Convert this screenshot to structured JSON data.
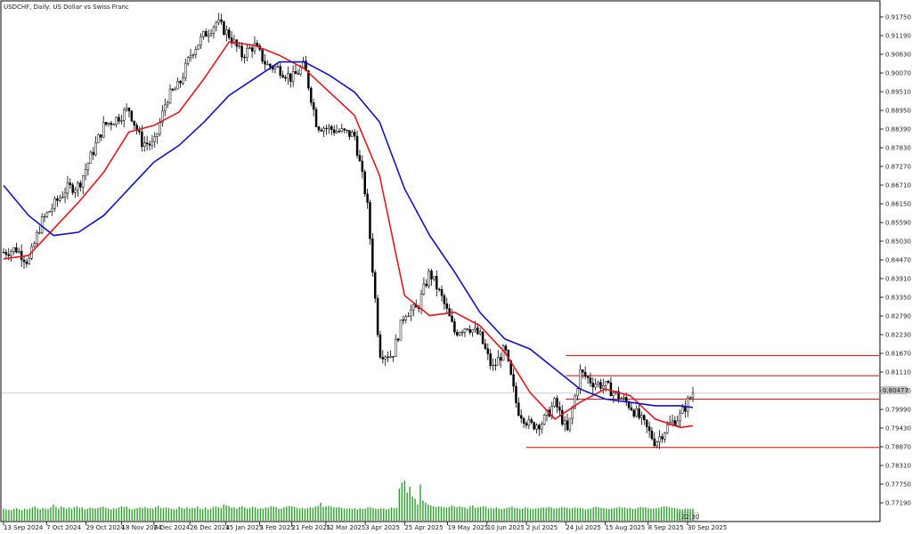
{
  "chart_title": "USDCHF, Daily:  US Dollar vs Swiss Franc",
  "price_tag": "0.80477",
  "time_tag": "22:30",
  "colors": {
    "candle": "#000000",
    "ma_fast": "#e8141c",
    "ma_slow": "#1010c8",
    "volume": "#2aa22a",
    "level_line": "#e00000",
    "bid_line": "#c0c0c0"
  },
  "chart_data": {
    "type": "line",
    "title": "USDCHF, Daily:  US Dollar vs Swiss Franc",
    "y_range": [
      0.769,
      0.92
    ],
    "y_ticks": [
      0.9175,
      0.9119,
      0.9063,
      0.9007,
      0.8951,
      0.8895,
      0.8839,
      0.8783,
      0.8727,
      0.8671,
      0.8615,
      0.8559,
      0.8503,
      0.8447,
      0.8391,
      0.8335,
      0.8279,
      0.8223,
      0.8167,
      0.8111,
      0.8055,
      0.7999,
      0.7943,
      0.7887,
      0.7831,
      0.7775,
      0.7719
    ],
    "y_tick_labels": [
      "0.91750",
      "0.91190",
      "0.90630",
      "0.90070",
      "0.89510",
      "0.88950",
      "0.88390",
      "0.87830",
      "0.87270",
      "0.86710",
      "0.86150",
      "0.85590",
      "0.85030",
      "0.84470",
      "0.83910",
      "0.83350",
      "0.82790",
      "0.82230",
      "0.81670",
      "0.81110",
      "0.80550",
      "0.79990",
      "0.79430",
      "0.78870",
      "0.78310",
      "0.77750",
      "0.77190"
    ],
    "x_labels": [
      "13 Sep 2024",
      "7 Oct 2024",
      "29 Oct 2024",
      "18 Nov 2024",
      "6 Dec 2024",
      "26 Dec 2024",
      "15 Jan 2025",
      "3 Feb 2025",
      "21 Feb 2025",
      "12 Mar 2025",
      "3 Apr 2025",
      "25 Apr 2025",
      "19 May 2025",
      "10 Jun 2025",
      "2 Jul 2025",
      "24 Jul 2025",
      "15 Aug 2025",
      "8 Sep 2025",
      "30 Sep 2025"
    ],
    "x_dates": [
      "2024-09-13",
      "2024-10-07",
      "2024-10-29",
      "2024-11-18",
      "2024-12-06",
      "2024-12-26",
      "2025-01-15",
      "2025-02-03",
      "2025-02-21",
      "2025-03-12",
      "2025-04-03",
      "2025-04-25",
      "2025-05-19",
      "2025-06-10",
      "2025-07-02",
      "2025-07-24",
      "2025-08-15",
      "2025-09-08",
      "2025-09-30"
    ],
    "close_path": [
      [
        "2024-09-13",
        0.847
      ],
      [
        "2024-09-20",
        0.848
      ],
      [
        "2024-09-27",
        0.844
      ],
      [
        "2024-10-04",
        0.856
      ],
      [
        "2024-10-11",
        0.861
      ],
      [
        "2024-10-18",
        0.866
      ],
      [
        "2024-10-25",
        0.867
      ],
      [
        "2024-11-01",
        0.876
      ],
      [
        "2024-11-08",
        0.885
      ],
      [
        "2024-11-15",
        0.887
      ],
      [
        "2024-11-22",
        0.89
      ],
      [
        "2024-11-29",
        0.88
      ],
      [
        "2024-12-06",
        0.879
      ],
      [
        "2024-12-13",
        0.893
      ],
      [
        "2024-12-20",
        0.897
      ],
      [
        "2024-12-27",
        0.907
      ],
      [
        "2025-01-03",
        0.912
      ],
      [
        "2025-01-10",
        0.916
      ],
      [
        "2025-01-17",
        0.912
      ],
      [
        "2025-01-24",
        0.906
      ],
      [
        "2025-01-31",
        0.909
      ],
      [
        "2025-02-07",
        0.903
      ],
      [
        "2025-02-14",
        0.902
      ],
      [
        "2025-02-21",
        0.899
      ],
      [
        "2025-02-28",
        0.903
      ],
      [
        "2025-03-07",
        0.885
      ],
      [
        "2025-03-14",
        0.884
      ],
      [
        "2025-03-21",
        0.883
      ],
      [
        "2025-03-28",
        0.882
      ],
      [
        "2025-04-04",
        0.862
      ],
      [
        "2025-04-11",
        0.817
      ],
      [
        "2025-04-18",
        0.816
      ],
      [
        "2025-04-25",
        0.829
      ],
      [
        "2025-05-02",
        0.83
      ],
      [
        "2025-05-09",
        0.841
      ],
      [
        "2025-05-16",
        0.833
      ],
      [
        "2025-05-23",
        0.823
      ],
      [
        "2025-05-30",
        0.825
      ],
      [
        "2025-06-06",
        0.822
      ],
      [
        "2025-06-13",
        0.812
      ],
      [
        "2025-06-20",
        0.818
      ],
      [
        "2025-06-27",
        0.8
      ],
      [
        "2025-07-04",
        0.795
      ],
      [
        "2025-07-11",
        0.796
      ],
      [
        "2025-07-18",
        0.802
      ],
      [
        "2025-07-25",
        0.793
      ],
      [
        "2025-08-01",
        0.811
      ],
      [
        "2025-08-08",
        0.808
      ],
      [
        "2025-08-15",
        0.807
      ],
      [
        "2025-08-22",
        0.804
      ],
      [
        "2025-08-29",
        0.801
      ],
      [
        "2025-09-05",
        0.796
      ],
      [
        "2025-09-12",
        0.79
      ],
      [
        "2025-09-19",
        0.795
      ],
      [
        "2025-09-26",
        0.798
      ],
      [
        "2025-10-03",
        0.805
      ]
    ],
    "series": [
      {
        "values": [
          [
            "2024-09-13",
            0.845
          ],
          [
            "2024-09-27",
            0.846
          ],
          [
            "2024-10-11",
            0.854
          ],
          [
            "2024-10-25",
            0.862
          ],
          [
            "2024-11-08",
            0.871
          ],
          [
            "2024-11-22",
            0.883
          ],
          [
            "2024-12-06",
            0.885
          ],
          [
            "2024-12-20",
            0.889
          ],
          [
            "2025-01-03",
            0.899
          ],
          [
            "2025-01-17",
            0.91
          ],
          [
            "2025-01-31",
            0.909
          ],
          [
            "2025-02-14",
            0.906
          ],
          [
            "2025-02-28",
            0.902
          ],
          [
            "2025-03-14",
            0.895
          ],
          [
            "2025-03-28",
            0.888
          ],
          [
            "2025-04-11",
            0.87
          ],
          [
            "2025-04-25",
            0.834
          ],
          [
            "2025-05-09",
            0.828
          ],
          [
            "2025-05-23",
            0.829
          ],
          [
            "2025-06-06",
            0.825
          ],
          [
            "2025-06-20",
            0.817
          ],
          [
            "2025-07-04",
            0.805
          ],
          [
            "2025-07-18",
            0.797
          ],
          [
            "2025-08-01",
            0.802
          ],
          [
            "2025-08-15",
            0.806
          ],
          [
            "2025-08-29",
            0.804
          ],
          [
            "2025-09-12",
            0.797
          ],
          [
            "2025-09-26",
            0.7945
          ],
          [
            "2025-10-03",
            0.795
          ]
        ]
      },
      {
        "values": [
          [
            "2024-09-13",
            0.867
          ],
          [
            "2024-09-27",
            0.858
          ],
          [
            "2024-10-11",
            0.852
          ],
          [
            "2024-10-25",
            0.853
          ],
          [
            "2024-11-08",
            0.858
          ],
          [
            "2024-11-22",
            0.866
          ],
          [
            "2024-12-06",
            0.874
          ],
          [
            "2024-12-20",
            0.879
          ],
          [
            "2025-01-03",
            0.886
          ],
          [
            "2025-01-17",
            0.894
          ],
          [
            "2025-01-31",
            0.899
          ],
          [
            "2025-02-14",
            0.904
          ],
          [
            "2025-02-28",
            0.904
          ],
          [
            "2025-03-14",
            0.9
          ],
          [
            "2025-03-28",
            0.895
          ],
          [
            "2025-04-11",
            0.886
          ],
          [
            "2025-04-25",
            0.866
          ],
          [
            "2025-05-09",
            0.852
          ],
          [
            "2025-05-23",
            0.841
          ],
          [
            "2025-06-06",
            0.829
          ],
          [
            "2025-06-20",
            0.821
          ],
          [
            "2025-07-04",
            0.818
          ],
          [
            "2025-07-18",
            0.812
          ],
          [
            "2025-08-01",
            0.806
          ],
          [
            "2025-08-15",
            0.803
          ],
          [
            "2025-08-29",
            0.802
          ],
          [
            "2025-09-12",
            0.801
          ],
          [
            "2025-09-26",
            0.801
          ],
          [
            "2025-10-03",
            0.8005
          ]
        ]
      }
    ],
    "levels": [
      {
        "value": 0.816,
        "from": "2025-07-24"
      },
      {
        "value": 0.81,
        "from": "2025-07-24"
      },
      {
        "value": 0.803,
        "from": "2025-07-24"
      },
      {
        "value": 0.7885,
        "from": "2025-07-02"
      }
    ],
    "current_price": 0.80477,
    "volume_relative": [
      0.3,
      0.28,
      0.27,
      0.26,
      0.3,
      0.31,
      0.28,
      0.26,
      0.3,
      0.28,
      0.3,
      0.33,
      0.35,
      0.3,
      0.28,
      0.32,
      0.3,
      0.29,
      0.33,
      0.4,
      0.34,
      0.3,
      0.35,
      0.33,
      0.3,
      0.33,
      0.3,
      0.34,
      0.36,
      0.32,
      0.33,
      0.28,
      0.29,
      0.32,
      0.31,
      0.3,
      0.32,
      0.34,
      0.35,
      0.32,
      0.3,
      0.28,
      0.31,
      0.3,
      0.33,
      0.36,
      0.33,
      0.35,
      0.3,
      0.28,
      0.3,
      0.31,
      0.33,
      0.32,
      0.34,
      0.31,
      0.31,
      0.3,
      0.34,
      0.37,
      0.32,
      0.31,
      0.33,
      0.32,
      0.3,
      0.28,
      0.29,
      0.35,
      0.32,
      0.3,
      0.33,
      0.3,
      0.32,
      0.31,
      0.35,
      0.3,
      0.29,
      0.33,
      0.28,
      0.3,
      0.34,
      0.35,
      0.33,
      0.32,
      0.4,
      0.38,
      0.36,
      0.32,
      0.33,
      0.3,
      0.34,
      0.36,
      0.33,
      0.3,
      0.32,
      0.35,
      0.33,
      0.3,
      0.31,
      0.3,
      0.33,
      0.32,
      0.36,
      0.35,
      0.34,
      0.3,
      0.3,
      0.33,
      0.35,
      0.37,
      0.36,
      0.34,
      0.32,
      0.3,
      0.32,
      0.3,
      0.31,
      0.33,
      0.32,
      0.35,
      0.37,
      0.45,
      0.34,
      0.36,
      0.37,
      0.35,
      0.33,
      0.33,
      0.34,
      0.32,
      0.3,
      0.3,
      0.31,
      0.29,
      0.31,
      0.28,
      0.31,
      0.29,
      0.3,
      0.33,
      0.33,
      0.31,
      0.3,
      0.29,
      0.31,
      0.3,
      0.28,
      0.3,
      0.33,
      0.31,
      0.32,
      0.8,
      0.95,
      1.0,
      0.7,
      0.85,
      0.6,
      0.55,
      0.4,
      0.9,
      0.5,
      0.45,
      0.4,
      0.38,
      0.36,
      0.34,
      0.36,
      0.35,
      0.33,
      0.32,
      0.34,
      0.38,
      0.35,
      0.33,
      0.36,
      0.34,
      0.33,
      0.3,
      0.35,
      0.38,
      0.32,
      0.33,
      0.34,
      0.36,
      0.35,
      0.3,
      0.31,
      0.3,
      0.33,
      0.3,
      0.29,
      0.3,
      0.32,
      0.33,
      0.35,
      0.32,
      0.31,
      0.29,
      0.3,
      0.33,
      0.31,
      0.3,
      0.29,
      0.3,
      0.31,
      0.32,
      0.33,
      0.32,
      0.34,
      0.33,
      0.3,
      0.31,
      0.32,
      0.34,
      0.33,
      0.32,
      0.3,
      0.31,
      0.33,
      0.31,
      0.32,
      0.3,
      0.28,
      0.29,
      0.3,
      0.33,
      0.35,
      0.33,
      0.32,
      0.31,
      0.3,
      0.29,
      0.3,
      0.31,
      0.32,
      0.34,
      0.32,
      0.33,
      0.3,
      0.31,
      0.29,
      0.3,
      0.32,
      0.34,
      0.33,
      0.33,
      0.31,
      0.3,
      0.3,
      0.31,
      0.32,
      0.34,
      0.36,
      0.35,
      0.33,
      0.32,
      0.32,
      0.3,
      0.29,
      0.28,
      0.3,
      0.3,
      0.29,
      0.3
    ]
  }
}
